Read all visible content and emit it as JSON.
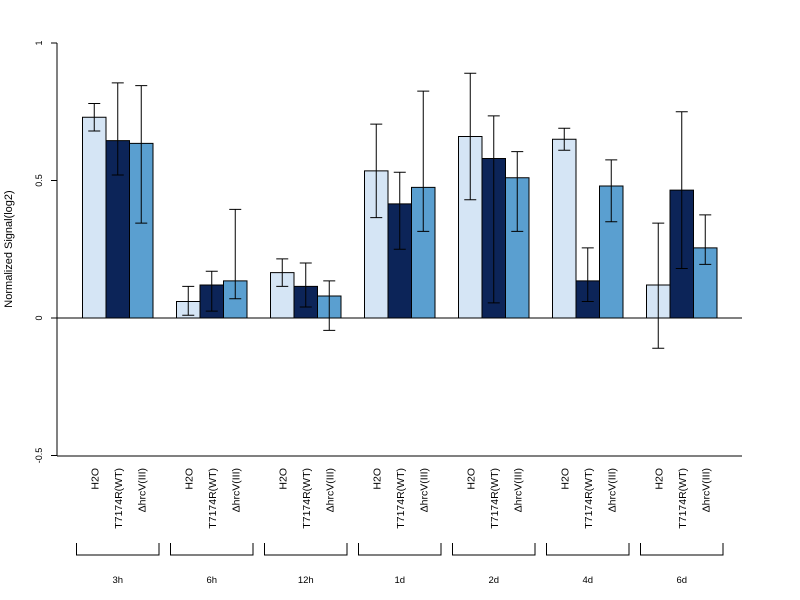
{
  "chart_data": {
    "type": "bar",
    "title": "",
    "xlabel": "",
    "ylabel": "Normalized Signal(log2)",
    "ylim": [
      -0.5,
      1
    ],
    "yticks": [
      "1",
      "0.5",
      "0",
      "-0.5"
    ],
    "grid": false,
    "legend": "none",
    "groups": [
      "3h",
      "6h",
      "12h",
      "1d",
      "2d",
      "4d",
      "6d"
    ],
    "series": [
      {
        "name": "H2O",
        "color": "#d5e5f5",
        "values": [
          0.73,
          0.06,
          0.165,
          0.535,
          0.66,
          0.65,
          0.12
        ],
        "err_low": [
          0.68,
          0.01,
          0.115,
          0.365,
          0.43,
          0.61,
          -0.11
        ],
        "err_high": [
          0.78,
          0.115,
          0.215,
          0.705,
          0.89,
          0.69,
          0.345
        ]
      },
      {
        "name": "T7174R(WT)",
        "color": "#0c2458",
        "values": [
          0.645,
          0.12,
          0.115,
          0.415,
          0.58,
          0.135,
          0.465
        ],
        "err_low": [
          0.52,
          0.025,
          0.04,
          0.25,
          0.055,
          0.06,
          0.18
        ],
        "err_high": [
          0.855,
          0.17,
          0.2,
          0.53,
          0.735,
          0.255,
          0.75
        ]
      },
      {
        "name": "ΔhrcV(III)",
        "color": "#5a9fd0",
        "values": [
          0.635,
          0.135,
          0.08,
          0.475,
          0.51,
          0.48,
          0.255
        ],
        "err_low": [
          0.345,
          0.07,
          -0.045,
          0.315,
          0.315,
          0.35,
          0.195
        ],
        "err_high": [
          0.845,
          0.395,
          0.135,
          0.825,
          0.605,
          0.575,
          0.375
        ]
      }
    ]
  }
}
